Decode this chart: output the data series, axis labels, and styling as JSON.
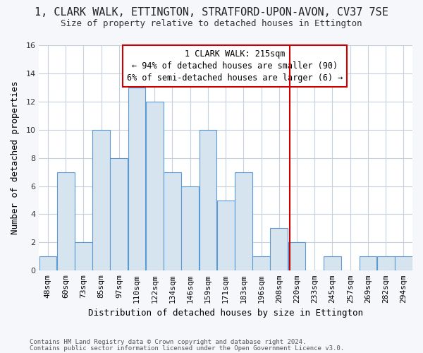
{
  "title": "1, CLARK WALK, ETTINGTON, STRATFORD-UPON-AVON, CV37 7SE",
  "subtitle": "Size of property relative to detached houses in Ettington",
  "xlabel": "Distribution of detached houses by size in Ettington",
  "ylabel": "Number of detached properties",
  "bin_labels": [
    "48sqm",
    "60sqm",
    "73sqm",
    "85sqm",
    "97sqm",
    "110sqm",
    "122sqm",
    "134sqm",
    "146sqm",
    "159sqm",
    "171sqm",
    "183sqm",
    "196sqm",
    "208sqm",
    "220sqm",
    "233sqm",
    "245sqm",
    "257sqm",
    "269sqm",
    "282sqm",
    "294sqm"
  ],
  "bar_values": [
    1,
    7,
    2,
    10,
    8,
    13,
    12,
    7,
    6,
    10,
    5,
    7,
    1,
    3,
    2,
    0,
    1,
    0,
    1,
    1,
    1
  ],
  "bar_color": "#d6e4f0",
  "bar_edgecolor": "#5b9bd5",
  "vline_x_index": 14,
  "ylim": [
    0,
    16
  ],
  "yticks": [
    0,
    2,
    4,
    6,
    8,
    10,
    12,
    14,
    16
  ],
  "annotation_line1": "1 CLARK WALK: 215sqm",
  "annotation_line2": "← 94% of detached houses are smaller (90)",
  "annotation_line3": "6% of semi-detached houses are larger (6) →",
  "annotation_box_color": "#ffffff",
  "annotation_box_edgecolor": "#cc0000",
  "vline_color": "#cc0000",
  "footer_line1": "Contains HM Land Registry data © Crown copyright and database right 2024.",
  "footer_line2": "Contains public sector information licensed under the Open Government Licence v3.0.",
  "background_color": "#f5f7fa",
  "plot_bg_color": "#ffffff",
  "grid_color": "#c8d0dc",
  "title_fontsize": 11,
  "subtitle_fontsize": 9,
  "ylabel_fontsize": 9,
  "xlabel_fontsize": 9,
  "tick_fontsize": 8,
  "annot_fontsize": 8.5,
  "footer_fontsize": 6.5
}
